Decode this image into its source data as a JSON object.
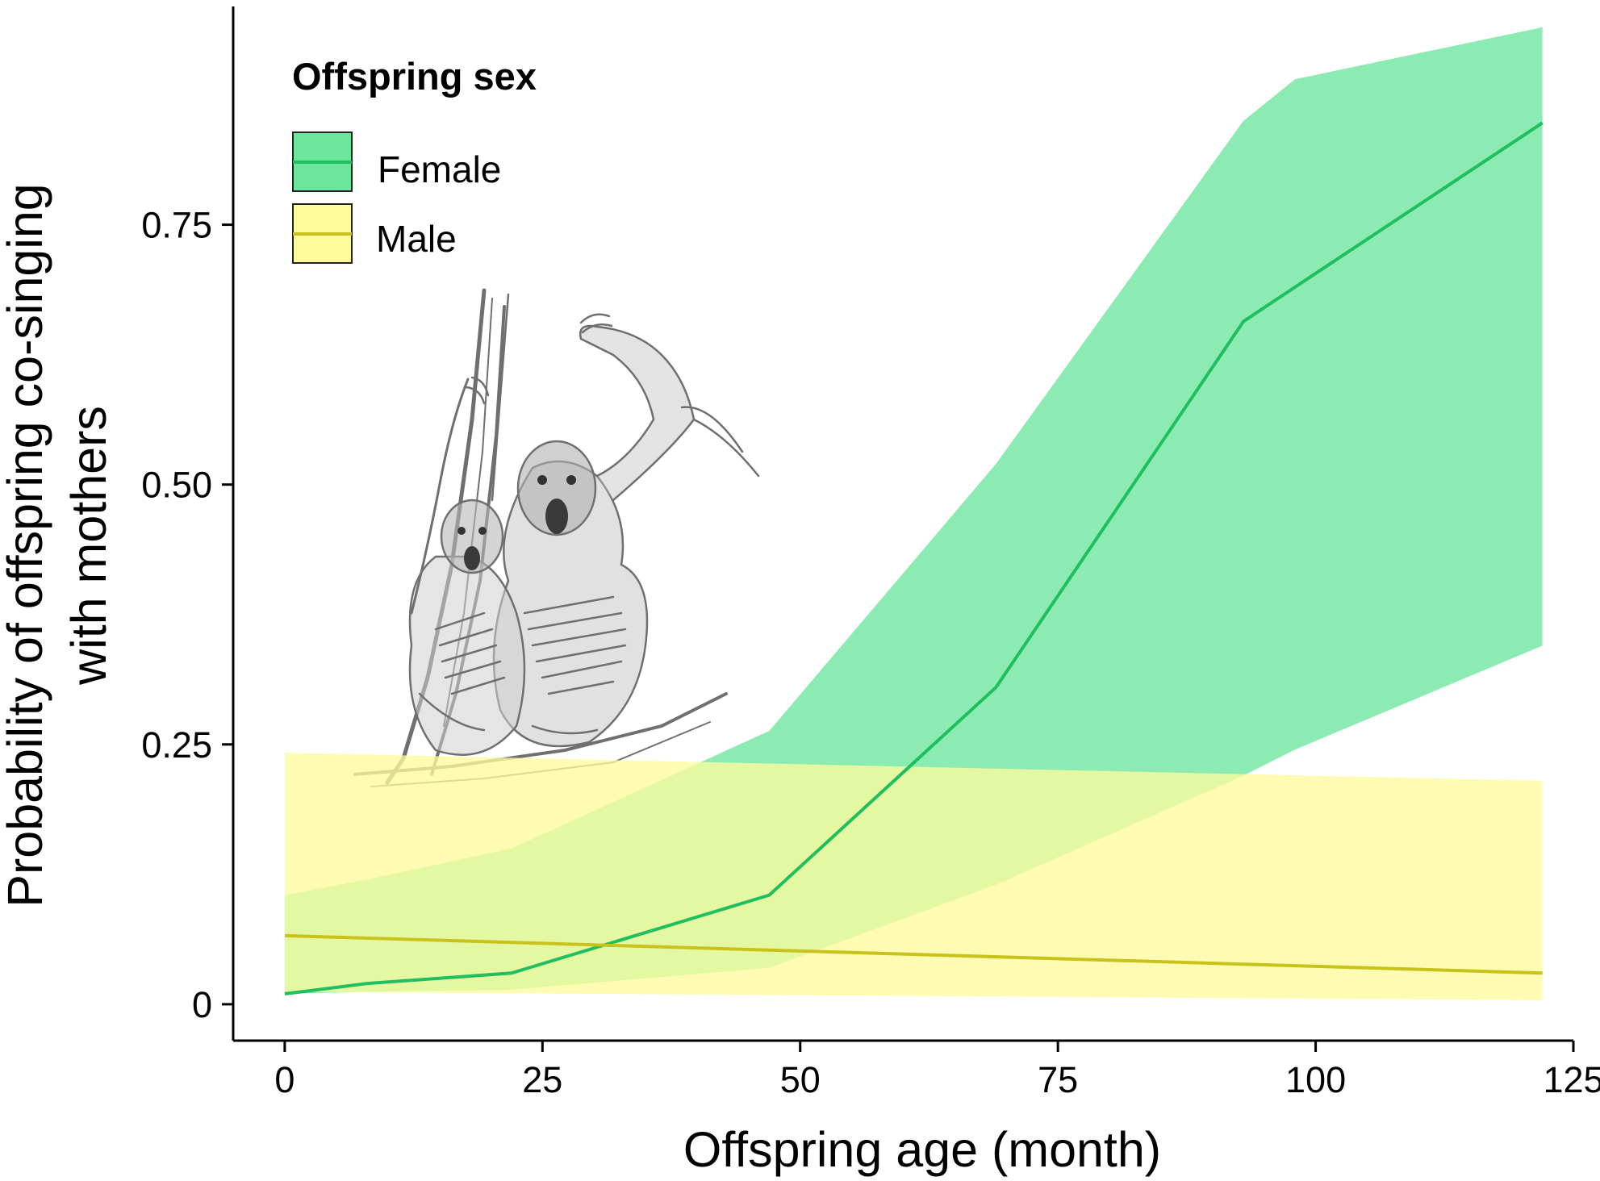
{
  "chart_data": {
    "type": "line",
    "xlabel": "Offspring age (month)",
    "ylabel_lines": [
      "Probability of offspring co-singing",
      "with mothers"
    ],
    "xlim": [
      -5,
      125
    ],
    "ylim": [
      -0.035,
      0.96
    ],
    "x_ticks": [
      0,
      25,
      50,
      75,
      100,
      125
    ],
    "x_tick_labels": [
      "0",
      "25",
      "50",
      "75",
      "100",
      "125"
    ],
    "y_ticks": [
      0,
      0.25,
      0.5,
      0.75
    ],
    "y_tick_labels": [
      "0",
      "0.25",
      "0.50",
      "0.75"
    ],
    "grid": false,
    "legend": {
      "title": "Offspring sex",
      "position": "top-left"
    },
    "series": [
      {
        "name": "Female",
        "color": "#1fbf5f",
        "band_color": "#6ce69c",
        "x": [
          0,
          8,
          22,
          47,
          69,
          93,
          98,
          122
        ],
        "y": [
          0.01,
          0.02,
          0.03,
          0.105,
          0.305,
          0.657,
          0.69,
          0.848
        ],
        "lower": [
          0.01,
          0.012,
          0.014,
          0.035,
          0.115,
          0.22,
          0.245,
          0.345
        ],
        "upper": [
          0.105,
          0.12,
          0.15,
          0.263,
          0.52,
          0.85,
          0.89,
          0.94
        ]
      },
      {
        "name": "Male",
        "color": "#c8c21b",
        "band_color": "#fdfb9c",
        "x": [
          0,
          122
        ],
        "y": [
          0.066,
          0.03
        ],
        "lower": [
          0.012,
          0.004
        ],
        "upper": [
          0.242,
          0.215
        ]
      }
    ],
    "illustration": "pencil sketch of two gibbons singing"
  }
}
